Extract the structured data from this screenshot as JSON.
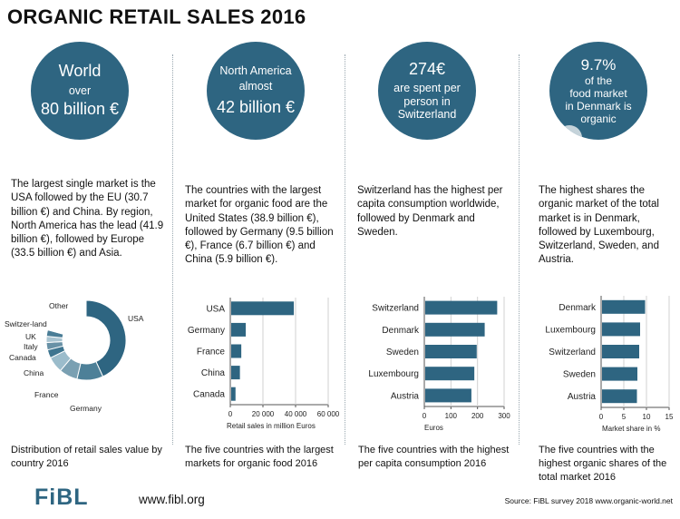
{
  "title": "ORGANIC RETAIL SALES 2016",
  "colors": {
    "accent": "#2e6581",
    "bar": "#2e6581",
    "highlight": "#dfe6ea"
  },
  "panels": [
    {
      "circle_lines": [
        "World",
        "over",
        "80 billion €"
      ],
      "description": "The largest single market is the USA followed by the EU (30.7 billion €) and China. By region, North America has the lead (41.9 billion €), followed by Europe (33.5 billion €) and Asia.",
      "caption": "Distribution of retail sales value by country 2016"
    },
    {
      "circle_lines": [
        "North America",
        "almost",
        "42 billion €"
      ],
      "description": "The countries with the largest market for organic food are the United States (38.9 billion €), followed by Germany (9.5 billion €), France (6.7 billion €) and China (5.9 billion €).",
      "caption": "The five countries with the largest markets for organic food 2016"
    },
    {
      "circle_lines": [
        "274€",
        "are spent per",
        "person in",
        "Switzerland"
      ],
      "description": "Switzerland has the highest per capita consumption worldwide, followed by Denmark and Sweden.",
      "caption": "The five countries with the highest per capita consumption 2016"
    },
    {
      "circle_lines": [
        "9.7%",
        "of  the",
        "food market",
        "in Denmark is",
        "organic"
      ],
      "description": "The highest shares the organic market of the total market is in Denmark, followed by Luxembourg, Switzerland, Sweden, and Austria.",
      "caption": "The five countries with the highest organic shares of the total market 2016"
    }
  ],
  "chart_data": [
    {
      "type": "pie",
      "title": "Distribution of retail sales value by country 2016",
      "categories": [
        "USA",
        "Germany",
        "France",
        "China",
        "Canada",
        "Italy",
        "UK",
        "Switzer-land",
        "Other"
      ],
      "values": [
        43.1,
        10.6,
        7.5,
        6.5,
        3.4,
        3.0,
        2.5,
        2.6,
        20.8
      ],
      "colors": [
        "#2e6581",
        "#4d8098",
        "#7aa0b2",
        "#9bbccb",
        "#3e7590",
        "#6891a6",
        "#a9c4d1",
        "#4a7d96",
        "#ffffff"
      ]
    },
    {
      "type": "bar",
      "orientation": "horizontal",
      "categories": [
        "USA",
        "Germany",
        "France",
        "China",
        "Canada"
      ],
      "values": [
        38938,
        9478,
        6736,
        5900,
        3200
      ],
      "xlabel": "Retail sales in million  Euros",
      "xlim": [
        0,
        60000
      ],
      "xticks": [
        0,
        20000,
        40000,
        60000
      ],
      "xtick_labels": [
        "0",
        "20 000",
        "40 000",
        "60 000"
      ]
    },
    {
      "type": "bar",
      "orientation": "horizontal",
      "categories": [
        "Switzerland",
        "Denmark",
        "Sweden",
        "Luxembourg",
        "Austria"
      ],
      "values": [
        274,
        227,
        197,
        188,
        177
      ],
      "xlabel": "Euros",
      "xlim": [
        0,
        300
      ],
      "xticks": [
        0,
        100,
        200,
        300
      ],
      "xtick_labels": [
        "0",
        "100",
        "200",
        "300"
      ]
    },
    {
      "type": "bar",
      "orientation": "horizontal",
      "categories": [
        "Denmark",
        "Luxembourg",
        "Switzerland",
        "Sweden",
        "Austria"
      ],
      "values": [
        9.7,
        8.6,
        8.4,
        8.0,
        7.9
      ],
      "xlabel": "Market share in  %",
      "xlim": [
        0,
        15
      ],
      "xticks": [
        0,
        5,
        10,
        15
      ],
      "xtick_labels": [
        "0",
        "5",
        "10",
        "15"
      ]
    }
  ],
  "footer": {
    "logo": "FiBL",
    "url": "www.fibl.org",
    "source": "Source: FiBL survey 2018  www.organic-world.net"
  }
}
